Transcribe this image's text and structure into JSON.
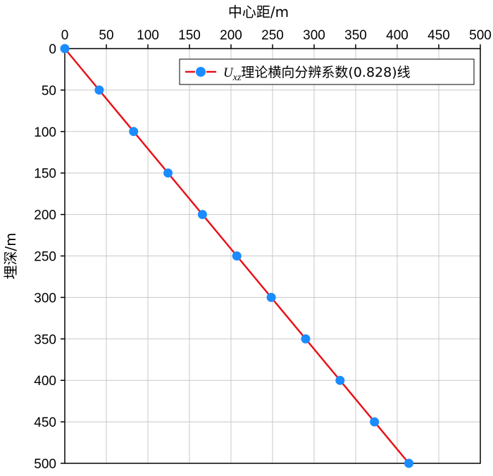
{
  "chart_data": {
    "type": "line",
    "xlabel": "中心距/m",
    "ylabel": "埋深/m",
    "xlim": [
      0,
      500
    ],
    "ylim": [
      0,
      500
    ],
    "y_inverted": true,
    "x_axis_position": "top",
    "grid": true,
    "x_ticks": [
      0,
      50,
      100,
      150,
      200,
      250,
      300,
      350,
      400,
      450,
      500
    ],
    "y_ticks": [
      0,
      50,
      100,
      150,
      200,
      250,
      300,
      350,
      400,
      450,
      500
    ],
    "legend": {
      "placement": "top-right",
      "symbol": "U",
      "subscript": "xz",
      "text": "理论横向分辨系数(0.828)线"
    },
    "series": [
      {
        "name": "Uxz理论横向分辨系数(0.828)线",
        "line_color": "#e8131b",
        "marker_color": "#1a8cff",
        "points": [
          {
            "x": 0,
            "y": 0
          },
          {
            "x": 41.4,
            "y": 50
          },
          {
            "x": 82.8,
            "y": 100
          },
          {
            "x": 124.2,
            "y": 150
          },
          {
            "x": 165.6,
            "y": 200
          },
          {
            "x": 207,
            "y": 250
          },
          {
            "x": 248.4,
            "y": 300
          },
          {
            "x": 289.8,
            "y": 350
          },
          {
            "x": 331.2,
            "y": 400
          },
          {
            "x": 372.6,
            "y": 450
          },
          {
            "x": 414,
            "y": 500
          }
        ]
      }
    ]
  }
}
